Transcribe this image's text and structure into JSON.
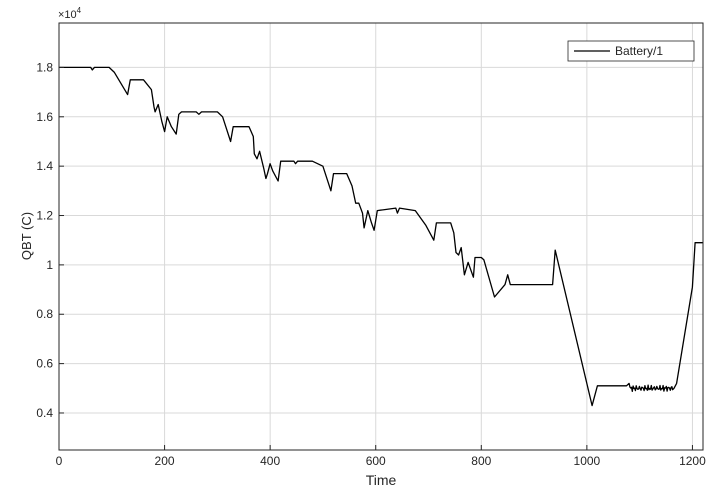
{
  "chart_data": {
    "type": "line",
    "title": "",
    "xlabel": "Time",
    "ylabel": "QBT (C)",
    "exponent_label": "×10",
    "exponent_power": "4",
    "xlim": [
      0,
      1220
    ],
    "ylim": [
      0.25,
      1.98
    ],
    "xticks": [
      0,
      200,
      400,
      600,
      800,
      1000,
      1200
    ],
    "yticks": [
      0.4,
      0.6,
      0.8,
      1,
      1.2,
      1.4,
      1.6,
      1.8
    ],
    "xtick_labels": [
      "0",
      "200",
      "400",
      "600",
      "800",
      "1000",
      "1200"
    ],
    "ytick_labels": [
      "0.4",
      "0.6",
      "0.8",
      "1",
      "1.2",
      "1.4",
      "1.6",
      "1.8"
    ],
    "grid": true,
    "legend_position": "top-right",
    "series": [
      {
        "name": "Battery/1",
        "color": "#000000",
        "x": [
          0,
          60,
          63,
          67,
          95,
          105,
          130,
          135,
          160,
          175,
          180,
          182,
          188,
          195,
          200,
          205,
          213,
          222,
          227,
          232,
          240,
          260,
          265,
          270,
          300,
          310,
          325,
          330,
          360,
          368,
          370,
          375,
          380,
          388,
          392,
          395,
          400,
          405,
          415,
          420,
          425,
          445,
          448,
          452,
          480,
          500,
          515,
          520,
          545,
          555,
          562,
          568,
          575,
          578,
          585,
          592,
          597,
          603,
          638,
          641,
          645,
          675,
          695,
          710,
          715,
          742,
          748,
          752,
          757,
          762,
          768,
          775,
          785,
          788,
          795,
          800,
          805,
          825,
          845,
          850,
          855,
          870,
          875,
          880,
          885,
          935,
          940,
          1010,
          1020,
          1075,
          1080,
          1090,
          1100,
          1110,
          1120,
          1130,
          1140,
          1150,
          1160,
          1165,
          1170,
          1200,
          1205,
          1220
        ],
        "y": [
          1.8,
          1.8,
          1.79,
          1.8,
          1.8,
          1.78,
          1.69,
          1.75,
          1.75,
          1.71,
          1.64,
          1.62,
          1.65,
          1.58,
          1.54,
          1.6,
          1.56,
          1.53,
          1.61,
          1.62,
          1.62,
          1.62,
          1.61,
          1.62,
          1.62,
          1.6,
          1.5,
          1.56,
          1.56,
          1.52,
          1.45,
          1.43,
          1.46,
          1.39,
          1.35,
          1.37,
          1.41,
          1.38,
          1.34,
          1.42,
          1.42,
          1.42,
          1.41,
          1.42,
          1.42,
          1.4,
          1.3,
          1.37,
          1.37,
          1.32,
          1.25,
          1.25,
          1.21,
          1.15,
          1.22,
          1.17,
          1.14,
          1.22,
          1.23,
          1.21,
          1.23,
          1.22,
          1.16,
          1.1,
          1.17,
          1.17,
          1.13,
          1.05,
          1.04,
          1.07,
          0.96,
          1.01,
          0.95,
          1.03,
          1.03,
          1.03,
          1.02,
          0.87,
          0.92,
          0.96,
          0.92,
          0.92,
          0.92,
          0.92,
          0.92,
          0.92,
          1.06,
          0.43,
          0.51,
          0.51,
          0.52,
          0.5,
          0.5,
          0.5,
          0.5,
          0.5,
          0.5,
          0.5,
          0.5,
          0.5,
          0.52,
          0.91,
          1.09,
          1.09
        ],
        "noise_segment": [
          1080,
          1165
        ]
      }
    ]
  }
}
